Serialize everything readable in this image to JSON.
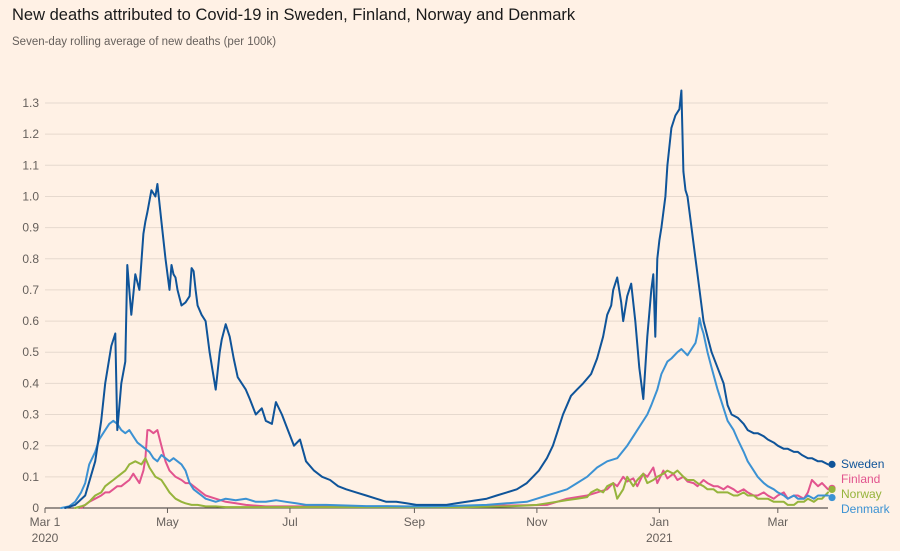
{
  "title": "New deaths attributed to Covid-19 in Sweden, Finland, Norway and Denmark",
  "subtitle": "Seven-day rolling average of new deaths (per 100k)",
  "chart_data": {
    "type": "line",
    "title": "New deaths attributed to Covid-19 in Sweden, Finland, Norway and Denmark",
    "subtitle": "Seven-day rolling average of new deaths (per 100k)",
    "xlabel": "",
    "ylabel": "",
    "ylim": [
      0,
      1.3
    ],
    "y_ticks": [
      0,
      0.1,
      0.2,
      0.3,
      0.4,
      0.5,
      0.6,
      0.7,
      0.8,
      0.9,
      1.0,
      1.1,
      1.2,
      1.3
    ],
    "y_tick_labels": [
      "0",
      "0.1",
      "0.2",
      "0.3",
      "0.4",
      "0.5",
      "0.6",
      "0.7",
      "0.8",
      "0.9",
      "1.0",
      "1.1",
      "1.2",
      "1.3"
    ],
    "x_unit": "days since 1 March 2020",
    "xlim": [
      0,
      390
    ],
    "x_ticks": [
      {
        "day": 0,
        "label": "Mar 1",
        "sublabel": "2020"
      },
      {
        "day": 61,
        "label": "May",
        "sublabel": ""
      },
      {
        "day": 122,
        "label": "Jul",
        "sublabel": ""
      },
      {
        "day": 184,
        "label": "Sep",
        "sublabel": ""
      },
      {
        "day": 245,
        "label": "Nov",
        "sublabel": ""
      },
      {
        "day": 306,
        "label": "Jan",
        "sublabel": "2021"
      },
      {
        "day": 365,
        "label": "Mar",
        "sublabel": ""
      }
    ],
    "series": [
      {
        "name": "Sweden",
        "color": "#0f5499",
        "x": [
          10,
          15,
          20,
          25,
          28,
          30,
          33,
          35,
          36,
          38,
          40,
          41,
          42,
          43,
          45,
          47,
          49,
          50,
          51,
          53,
          55,
          56,
          57,
          58,
          60,
          62,
          63,
          64,
          65,
          66,
          68,
          70,
          72,
          73,
          74,
          75,
          76,
          78,
          80,
          82,
          85,
          87,
          88,
          90,
          92,
          94,
          96,
          98,
          100,
          102,
          105,
          108,
          110,
          113,
          115,
          118,
          121,
          124,
          127,
          130,
          134,
          138,
          142,
          146,
          150,
          155,
          160,
          165,
          170,
          175,
          180,
          185,
          190,
          195,
          200,
          205,
          210,
          215,
          220,
          225,
          230,
          235,
          240,
          243,
          246,
          250,
          253,
          255,
          258,
          260,
          262,
          265,
          268,
          272,
          275,
          278,
          280,
          282,
          283,
          284,
          285,
          287,
          288,
          290,
          292,
          294,
          296,
          298,
          300,
          302,
          303,
          304,
          305,
          306,
          307,
          308,
          309,
          310,
          312,
          314,
          316,
          317,
          318,
          319,
          320,
          321,
          322,
          323,
          324,
          325,
          326,
          327,
          328,
          330,
          332,
          335,
          338,
          340,
          342,
          345,
          348,
          350,
          353,
          355,
          358,
          360,
          363,
          365,
          368,
          370,
          373,
          375,
          377,
          380,
          382,
          385,
          387,
          390
        ],
        "values": [
          0,
          0.01,
          0.04,
          0.15,
          0.28,
          0.4,
          0.52,
          0.56,
          0.25,
          0.4,
          0.47,
          0.78,
          0.7,
          0.62,
          0.75,
          0.7,
          0.88,
          0.92,
          0.95,
          1.02,
          1.0,
          1.04,
          0.98,
          0.92,
          0.8,
          0.7,
          0.78,
          0.75,
          0.74,
          0.7,
          0.65,
          0.66,
          0.68,
          0.77,
          0.76,
          0.7,
          0.65,
          0.62,
          0.6,
          0.5,
          0.38,
          0.5,
          0.54,
          0.59,
          0.55,
          0.48,
          0.42,
          0.4,
          0.38,
          0.35,
          0.3,
          0.32,
          0.28,
          0.27,
          0.34,
          0.3,
          0.25,
          0.2,
          0.22,
          0.15,
          0.12,
          0.1,
          0.09,
          0.07,
          0.06,
          0.05,
          0.04,
          0.03,
          0.02,
          0.02,
          0.015,
          0.01,
          0.01,
          0.01,
          0.01,
          0.015,
          0.02,
          0.025,
          0.03,
          0.04,
          0.05,
          0.06,
          0.08,
          0.1,
          0.12,
          0.16,
          0.2,
          0.24,
          0.3,
          0.33,
          0.36,
          0.38,
          0.4,
          0.43,
          0.48,
          0.55,
          0.62,
          0.65,
          0.7,
          0.72,
          0.74,
          0.66,
          0.6,
          0.68,
          0.72,
          0.6,
          0.45,
          0.35,
          0.55,
          0.7,
          0.75,
          0.55,
          0.8,
          0.86,
          0.9,
          0.95,
          1.0,
          1.1,
          1.22,
          1.26,
          1.28,
          1.34,
          1.08,
          1.02,
          1.0,
          0.95,
          0.9,
          0.85,
          0.8,
          0.75,
          0.7,
          0.65,
          0.6,
          0.55,
          0.5,
          0.45,
          0.4,
          0.33,
          0.3,
          0.29,
          0.27,
          0.25,
          0.24,
          0.24,
          0.23,
          0.22,
          0.21,
          0.2,
          0.19,
          0.19,
          0.18,
          0.18,
          0.17,
          0.16,
          0.16,
          0.15,
          0.15,
          0.14
        ],
        "end_value": 0.14
      },
      {
        "name": "Finland",
        "color": "#e2548e",
        "x": [
          18,
          20,
          22,
          25,
          28,
          30,
          32,
          34,
          36,
          38,
          40,
          42,
          44,
          45,
          47,
          49,
          50,
          51,
          52,
          54,
          56,
          58,
          60,
          62,
          65,
          68,
          70,
          72,
          74,
          76,
          78,
          80,
          85,
          90,
          95,
          100,
          110,
          120,
          130,
          140,
          150,
          160,
          170,
          180,
          190,
          200,
          210,
          220,
          230,
          240,
          250,
          255,
          260,
          265,
          270,
          275,
          280,
          283,
          285,
          288,
          290,
          293,
          295,
          298,
          300,
          303,
          305,
          308,
          310,
          313,
          315,
          318,
          320,
          323,
          325,
          328,
          330,
          333,
          335,
          338,
          340,
          343,
          345,
          348,
          350,
          353,
          355,
          358,
          360,
          363,
          365,
          368,
          370,
          373,
          375,
          378,
          380,
          382,
          385,
          387,
          390
        ],
        "values": [
          0,
          0.01,
          0.02,
          0.03,
          0.04,
          0.05,
          0.05,
          0.06,
          0.07,
          0.07,
          0.08,
          0.09,
          0.11,
          0.1,
          0.08,
          0.12,
          0.16,
          0.25,
          0.25,
          0.24,
          0.25,
          0.2,
          0.15,
          0.12,
          0.1,
          0.09,
          0.08,
          0.08,
          0.07,
          0.06,
          0.05,
          0.04,
          0.03,
          0.02,
          0.015,
          0.01,
          0.005,
          0.005,
          0.005,
          0.005,
          0.004,
          0.004,
          0.004,
          0.004,
          0.004,
          0.005,
          0.006,
          0.007,
          0.008,
          0.009,
          0.01,
          0.02,
          0.03,
          0.035,
          0.04,
          0.05,
          0.06,
          0.08,
          0.07,
          0.1,
          0.085,
          0.095,
          0.07,
          0.11,
          0.1,
          0.13,
          0.08,
          0.12,
          0.095,
          0.11,
          0.09,
          0.1,
          0.085,
          0.08,
          0.07,
          0.09,
          0.08,
          0.07,
          0.07,
          0.06,
          0.07,
          0.06,
          0.05,
          0.06,
          0.05,
          0.04,
          0.04,
          0.05,
          0.04,
          0.03,
          0.04,
          0.05,
          0.03,
          0.04,
          0.04,
          0.03,
          0.05,
          0.09,
          0.07,
          0.08,
          0.06
        ],
        "end_value": 0.06
      },
      {
        "name": "Norway",
        "color": "#96b43c",
        "x": [
          15,
          18,
          20,
          22,
          25,
          28,
          30,
          32,
          34,
          36,
          38,
          40,
          42,
          45,
          48,
          50,
          52,
          55,
          58,
          60,
          62,
          65,
          68,
          70,
          73,
          76,
          80,
          85,
          90,
          95,
          100,
          110,
          120,
          130,
          140,
          150,
          160,
          170,
          180,
          190,
          200,
          210,
          220,
          230,
          240,
          245,
          250,
          255,
          260,
          265,
          270,
          272,
          275,
          278,
          280,
          283,
          285,
          288,
          290,
          293,
          295,
          298,
          300,
          303,
          305,
          308,
          310,
          313,
          315,
          318,
          320,
          323,
          325,
          328,
          330,
          333,
          335,
          338,
          340,
          343,
          345,
          348,
          350,
          353,
          355,
          358,
          360,
          363,
          365,
          368,
          370,
          373,
          375,
          378,
          380,
          383,
          385,
          387,
          390
        ],
        "values": [
          0,
          0.005,
          0.01,
          0.02,
          0.04,
          0.05,
          0.07,
          0.08,
          0.09,
          0.1,
          0.11,
          0.12,
          0.14,
          0.15,
          0.14,
          0.16,
          0.13,
          0.1,
          0.09,
          0.07,
          0.05,
          0.03,
          0.02,
          0.015,
          0.01,
          0.01,
          0.005,
          0.005,
          0.003,
          0.003,
          0.003,
          0.003,
          0.003,
          0.003,
          0.003,
          0.003,
          0.003,
          0.003,
          0.003,
          0.003,
          0.003,
          0.003,
          0.004,
          0.005,
          0.008,
          0.01,
          0.015,
          0.02,
          0.025,
          0.03,
          0.035,
          0.05,
          0.06,
          0.05,
          0.07,
          0.08,
          0.03,
          0.06,
          0.1,
          0.07,
          0.09,
          0.11,
          0.08,
          0.09,
          0.1,
          0.11,
          0.12,
          0.11,
          0.12,
          0.1,
          0.09,
          0.09,
          0.08,
          0.07,
          0.06,
          0.06,
          0.05,
          0.05,
          0.05,
          0.04,
          0.04,
          0.05,
          0.04,
          0.04,
          0.03,
          0.03,
          0.03,
          0.02,
          0.02,
          0.02,
          0.01,
          0.01,
          0.02,
          0.02,
          0.03,
          0.02,
          0.03,
          0.03,
          0.05
        ],
        "end_value": 0.05
      },
      {
        "name": "Denmark",
        "color": "#3c92d3",
        "x": [
          8,
          12,
          15,
          18,
          20,
          22,
          25,
          27,
          28,
          30,
          32,
          34,
          36,
          38,
          40,
          42,
          44,
          46,
          48,
          50,
          52,
          54,
          56,
          58,
          60,
          62,
          64,
          66,
          68,
          70,
          72,
          74,
          76,
          78,
          80,
          85,
          90,
          95,
          100,
          105,
          110,
          115,
          120,
          125,
          130,
          140,
          150,
          160,
          170,
          180,
          190,
          200,
          210,
          220,
          230,
          240,
          245,
          250,
          255,
          260,
          265,
          270,
          275,
          280,
          285,
          290,
          295,
          300,
          302,
          305,
          307,
          310,
          312,
          315,
          317,
          320,
          322,
          324,
          325,
          326,
          327,
          328,
          330,
          332,
          335,
          338,
          340,
          343,
          345,
          348,
          350,
          353,
          355,
          358,
          360,
          363,
          365,
          368,
          370,
          373,
          375,
          378,
          380,
          383,
          385,
          387,
          390
        ],
        "values": [
          0,
          0.005,
          0.02,
          0.05,
          0.08,
          0.14,
          0.18,
          0.22,
          0.23,
          0.25,
          0.27,
          0.28,
          0.27,
          0.25,
          0.24,
          0.25,
          0.23,
          0.21,
          0.2,
          0.19,
          0.18,
          0.16,
          0.15,
          0.17,
          0.16,
          0.15,
          0.16,
          0.15,
          0.14,
          0.12,
          0.08,
          0.06,
          0.05,
          0.04,
          0.03,
          0.02,
          0.03,
          0.025,
          0.03,
          0.02,
          0.02,
          0.025,
          0.02,
          0.015,
          0.01,
          0.01,
          0.008,
          0.006,
          0.006,
          0.005,
          0.005,
          0.006,
          0.008,
          0.01,
          0.015,
          0.02,
          0.03,
          0.04,
          0.05,
          0.06,
          0.08,
          0.1,
          0.13,
          0.15,
          0.16,
          0.2,
          0.25,
          0.3,
          0.33,
          0.38,
          0.43,
          0.47,
          0.48,
          0.5,
          0.51,
          0.49,
          0.51,
          0.53,
          0.56,
          0.61,
          0.58,
          0.56,
          0.5,
          0.45,
          0.38,
          0.32,
          0.28,
          0.25,
          0.22,
          0.18,
          0.15,
          0.12,
          0.1,
          0.08,
          0.07,
          0.06,
          0.05,
          0.04,
          0.03,
          0.04,
          0.03,
          0.03,
          0.04,
          0.03,
          0.04,
          0.04,
          0.04
        ],
        "end_value": 0.04
      }
    ]
  }
}
